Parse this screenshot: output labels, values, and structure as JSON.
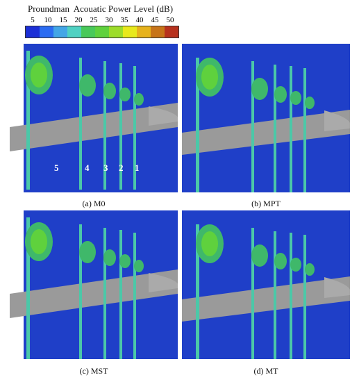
{
  "legend": {
    "title": "Proundman  Acouatic Power Level (dB)",
    "ticks": [
      "5",
      "10",
      "15",
      "20",
      "25",
      "30",
      "35",
      "40",
      "45",
      "50"
    ],
    "colors": [
      "#1c2fd6",
      "#2b6cf2",
      "#43a6e6",
      "#4fd1c2",
      "#49c95a",
      "#5fd13d",
      "#9ddc2a",
      "#e8e91c",
      "#e6b21c",
      "#c77419",
      "#b7321e"
    ]
  },
  "panels": [
    {
      "caption": "(a) M0"
    },
    {
      "caption": "(b) MPT"
    },
    {
      "caption": "(c) MST"
    },
    {
      "caption": "(d) MT"
    }
  ],
  "blade_labels": [
    "5",
    "4",
    "3",
    "2",
    "1"
  ]
}
